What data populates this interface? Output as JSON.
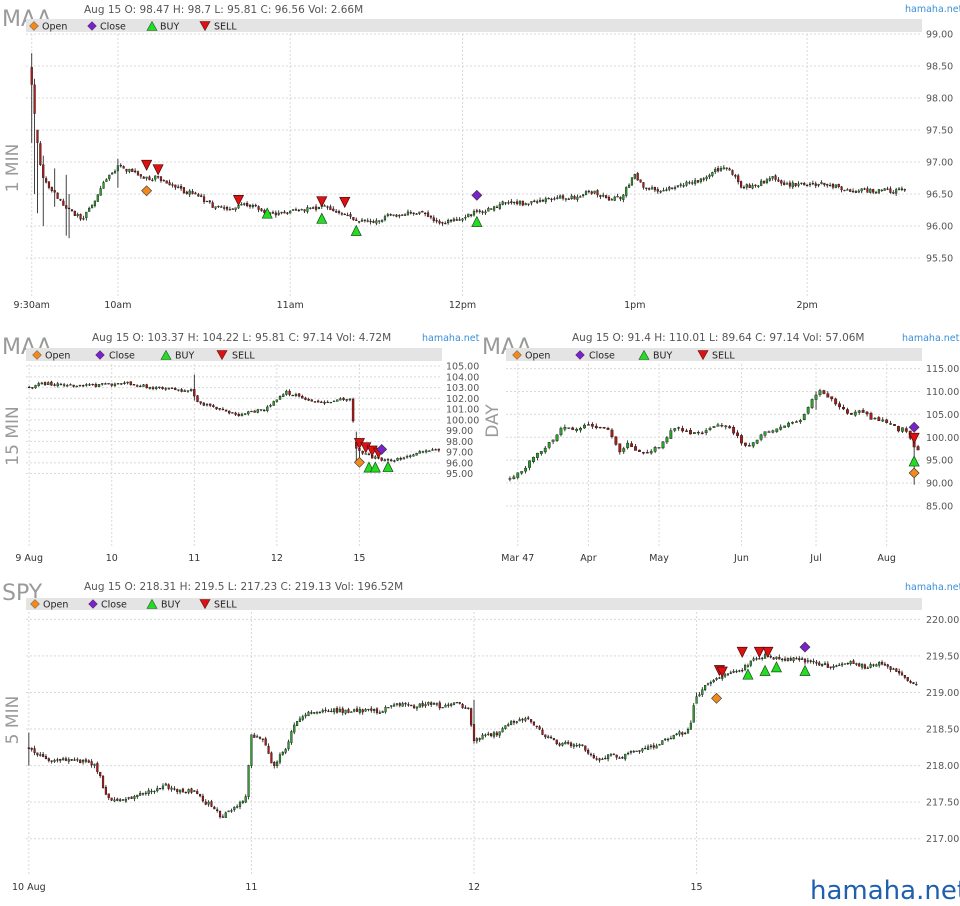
{
  "brand_small": "hamaha.net",
  "watermark": "hamaha.net",
  "legend": {
    "open": "Open",
    "close": "Close",
    "buy": "BUY",
    "sell": "SELL"
  },
  "colors": {
    "up": "#2ca02c",
    "down": "#b01818",
    "open_marker": "#f08a1e",
    "close_marker": "#7a22c8",
    "buy": "#22dd22",
    "sell": "#dd1111"
  },
  "chart_data": [
    {
      "id": "maa_1min",
      "type": "candlestick",
      "symbol": "MAA",
      "timeframe": "1 MIN",
      "info": "Aug 15 O: 98.47 H: 98.7 L: 95.81 C: 96.56   Vol: 2.66M",
      "ylim": [
        95.0,
        99.0
      ],
      "yticks": [
        "99.00",
        "98.50",
        "98.00",
        "97.50",
        "97.00",
        "96.50",
        "96.00",
        "95.50"
      ],
      "xticks": [
        {
          "label": "9:30am",
          "x": 0
        },
        {
          "label": "10am",
          "x": 30
        },
        {
          "label": "11am",
          "x": 90
        },
        {
          "label": "12pm",
          "x": 150
        },
        {
          "label": "1pm",
          "x": 210
        },
        {
          "label": "2pm",
          "x": 270
        }
      ],
      "xlim": [
        -2,
        310
      ],
      "n": 305,
      "path": [
        [
          0,
          98.47
        ],
        [
          2,
          97.5
        ],
        [
          4,
          96.8
        ],
        [
          7,
          96.6
        ],
        [
          12,
          96.3
        ],
        [
          18,
          96.1
        ],
        [
          22,
          96.35
        ],
        [
          26,
          96.7
        ],
        [
          31,
          96.95
        ],
        [
          35,
          96.85
        ],
        [
          40,
          96.75
        ],
        [
          45,
          96.75
        ],
        [
          50,
          96.6
        ],
        [
          57,
          96.5
        ],
        [
          64,
          96.3
        ],
        [
          70,
          96.25
        ],
        [
          76,
          96.35
        ],
        [
          82,
          96.2
        ],
        [
          88,
          96.2
        ],
        [
          95,
          96.25
        ],
        [
          102,
          96.3
        ],
        [
          108,
          96.2
        ],
        [
          114,
          96.1
        ],
        [
          119,
          96.05
        ],
        [
          124,
          96.15
        ],
        [
          130,
          96.2
        ],
        [
          136,
          96.2
        ],
        [
          142,
          96.05
        ],
        [
          148,
          96.1
        ],
        [
          154,
          96.2
        ],
        [
          160,
          96.25
        ],
        [
          166,
          96.4
        ],
        [
          172,
          96.35
        ],
        [
          178,
          96.4
        ],
        [
          184,
          96.45
        ],
        [
          190,
          96.45
        ],
        [
          196,
          96.55
        ],
        [
          201,
          96.4
        ],
        [
          206,
          96.45
        ],
        [
          210,
          96.8
        ],
        [
          214,
          96.6
        ],
        [
          220,
          96.55
        ],
        [
          226,
          96.65
        ],
        [
          232,
          96.7
        ],
        [
          238,
          96.85
        ],
        [
          243,
          96.9
        ],
        [
          248,
          96.6
        ],
        [
          253,
          96.65
        ],
        [
          258,
          96.75
        ],
        [
          264,
          96.65
        ],
        [
          270,
          96.65
        ],
        [
          276,
          96.65
        ],
        [
          282,
          96.6
        ],
        [
          286,
          96.55
        ],
        [
          292,
          96.55
        ],
        [
          298,
          96.55
        ],
        [
          304,
          96.56
        ]
      ],
      "spikes": [
        [
          0,
          98.7,
          97.3
        ],
        [
          1,
          98.3,
          96.5
        ],
        [
          2,
          97.5,
          96.2
        ],
        [
          4,
          97.1,
          96.0
        ],
        [
          8,
          96.9,
          96.3
        ],
        [
          12,
          96.8,
          95.85
        ],
        [
          13,
          96.5,
          95.81
        ],
        [
          30,
          97.05,
          96.6
        ]
      ],
      "markers": [
        {
          "kind": "sell",
          "x": 40,
          "y": 96.95
        },
        {
          "kind": "sell",
          "x": 44,
          "y": 96.88
        },
        {
          "kind": "open",
          "x": 40,
          "y": 96.55
        },
        {
          "kind": "sell",
          "x": 72,
          "y": 96.4
        },
        {
          "kind": "buy",
          "x": 82,
          "y": 96.2
        },
        {
          "kind": "sell",
          "x": 101,
          "y": 96.38
        },
        {
          "kind": "buy",
          "x": 101,
          "y": 96.12
        },
        {
          "kind": "sell",
          "x": 109,
          "y": 96.37
        },
        {
          "kind": "buy",
          "x": 113,
          "y": 95.93
        },
        {
          "kind": "close",
          "x": 155,
          "y": 96.48
        },
        {
          "kind": "buy",
          "x": 155,
          "y": 96.07
        }
      ]
    },
    {
      "id": "maa_15min",
      "type": "candlestick",
      "symbol": "MAA",
      "timeframe": "15 MIN",
      "info": "Aug 15 O: 103.37 H: 104.22 L: 95.81 C: 97.14   Vol: 4.72M",
      "ylim": [
        89.0,
        105.2
      ],
      "yticks": [
        "105.00",
        "104.00",
        "103.00",
        "102.00",
        "101.00",
        "100.00",
        "99.00",
        "98.00",
        "97.00",
        "96.00",
        "95.00"
      ],
      "xticks": [
        {
          "label": "9 Aug",
          "x": 0
        },
        {
          "label": "10",
          "x": 26
        },
        {
          "label": "11",
          "x": 52
        },
        {
          "label": "12",
          "x": 78
        },
        {
          "label": "15",
          "x": 104
        }
      ],
      "xlim": [
        -1,
        130
      ],
      "n": 130,
      "gap_after": 102,
      "path": [
        [
          0,
          103.0
        ],
        [
          5,
          103.4
        ],
        [
          10,
          103.3
        ],
        [
          15,
          103.15
        ],
        [
          20,
          103.2
        ],
        [
          26,
          103.3
        ],
        [
          30,
          103.5
        ],
        [
          35,
          103.2
        ],
        [
          40,
          103.0
        ],
        [
          45,
          102.9
        ],
        [
          51,
          102.6
        ],
        [
          52,
          102.9
        ],
        [
          53,
          101.6
        ],
        [
          58,
          101.2
        ],
        [
          63,
          100.8
        ],
        [
          66,
          100.5
        ],
        [
          70,
          100.65
        ],
        [
          75,
          101.0
        ],
        [
          78,
          101.7
        ],
        [
          81,
          102.6
        ],
        [
          85,
          102.3
        ],
        [
          88,
          101.8
        ],
        [
          94,
          101.6
        ],
        [
          100,
          102.0
        ],
        [
          102,
          102.1
        ],
        [
          103,
          97.6
        ],
        [
          106,
          96.9
        ],
        [
          109,
          96.5
        ],
        [
          112,
          96.2
        ],
        [
          116,
          96.3
        ],
        [
          119,
          96.6
        ],
        [
          122,
          96.8
        ],
        [
          126,
          97.2
        ],
        [
          129,
          97.14
        ]
      ],
      "spikes": [
        [
          52,
          104.22,
          101.8
        ],
        [
          103,
          98.9,
          96.0
        ],
        [
          104,
          98.1,
          95.9
        ]
      ],
      "markers": [
        {
          "kind": "sell",
          "x": 104,
          "y": 97.8
        },
        {
          "kind": "sell",
          "x": 106,
          "y": 97.4
        },
        {
          "kind": "sell",
          "x": 108,
          "y": 97.1
        },
        {
          "kind": "sell",
          "x": 110,
          "y": 96.9
        },
        {
          "kind": "open",
          "x": 104,
          "y": 96.05
        },
        {
          "kind": "close",
          "x": 111,
          "y": 97.25
        },
        {
          "kind": "buy",
          "x": 107,
          "y": 95.6
        },
        {
          "kind": "buy",
          "x": 109,
          "y": 95.6
        },
        {
          "kind": "buy",
          "x": 113,
          "y": 95.65
        }
      ]
    },
    {
      "id": "maa_day",
      "type": "candlestick",
      "symbol": "MAA",
      "timeframe": "DAY",
      "info": "Aug 15 O: 91.4 H: 110.01 L: 89.64 C: 97.14   Vol: 57.06M",
      "ylim": [
        78.0,
        116.0
      ],
      "yticks": [
        "115.00",
        "110.00",
        "105.00",
        "100.00",
        "95.00",
        "90.00",
        "85.00"
      ],
      "xticks": [
        {
          "label": "Mar 47",
          "x": 2
        },
        {
          "label": "Apr",
          "x": 20
        },
        {
          "label": "May",
          "x": 38
        },
        {
          "label": "Jun",
          "x": 59
        },
        {
          "label": "Jul",
          "x": 78
        },
        {
          "label": "Aug",
          "x": 96
        }
      ],
      "xlim": [
        -1,
        105
      ],
      "n": 105,
      "path": [
        [
          0,
          91.0
        ],
        [
          3,
          92.0
        ],
        [
          6,
          95.0
        ],
        [
          9,
          97.5
        ],
        [
          12,
          100.0
        ],
        [
          14,
          102.0
        ],
        [
          17,
          101.5
        ],
        [
          20,
          102.5
        ],
        [
          23,
          102.5
        ],
        [
          26,
          101.0
        ],
        [
          28,
          97.0
        ],
        [
          31,
          98.5
        ],
        [
          34,
          96.5
        ],
        [
          37,
          97.5
        ],
        [
          39,
          98.0
        ],
        [
          42,
          102.0
        ],
        [
          45,
          101.5
        ],
        [
          48,
          100.5
        ],
        [
          51,
          101.5
        ],
        [
          54,
          102.5
        ],
        [
          57,
          102.0
        ],
        [
          60,
          98.0
        ],
        [
          62,
          98.0
        ],
        [
          64,
          100.5
        ],
        [
          67,
          101.5
        ],
        [
          70,
          102.5
        ],
        [
          73,
          103.0
        ],
        [
          75,
          104.0
        ],
        [
          77,
          108.0
        ],
        [
          79,
          110.0
        ],
        [
          82,
          108.5
        ],
        [
          85,
          106.0
        ],
        [
          88,
          105.0
        ],
        [
          90,
          106.0
        ],
        [
          92,
          104.5
        ],
        [
          94,
          103.5
        ],
        [
          96,
          104.0
        ],
        [
          98,
          102.5
        ],
        [
          100,
          101.5
        ],
        [
          101,
          102.5
        ],
        [
          103,
          99.0
        ],
        [
          104,
          97.14
        ]
      ],
      "spikes": [
        [
          78,
          110.01,
          106.0
        ],
        [
          103,
          101.0,
          89.64
        ]
      ],
      "markers": [
        {
          "kind": "close",
          "x": 103,
          "y": 102.2
        },
        {
          "kind": "sell",
          "x": 103,
          "y": 99.8
        },
        {
          "kind": "buy",
          "x": 103,
          "y": 94.8
        },
        {
          "kind": "open",
          "x": 103,
          "y": 92.2
        }
      ]
    },
    {
      "id": "spy_5min",
      "type": "candlestick",
      "symbol": "SPY",
      "timeframe": "5 MIN",
      "info": "Aug 15 O: 218.31 H: 219.5 L: 217.23 C: 219.13   Vol: 196.52M",
      "ylim": [
        216.6,
        220.1
      ],
      "yticks": [
        "220.00",
        "219.50",
        "219.00",
        "218.50",
        "218.00",
        "217.50",
        "217.00"
      ],
      "xticks": [
        {
          "label": "10 Aug",
          "x": 0
        },
        {
          "label": "11",
          "x": 78
        },
        {
          "label": "12",
          "x": 156
        },
        {
          "label": "15",
          "x": 234
        }
      ],
      "xlim": [
        -1,
        313
      ],
      "n": 312,
      "path": [
        [
          0,
          218.25
        ],
        [
          4,
          218.15
        ],
        [
          8,
          218.05
        ],
        [
          14,
          218.1
        ],
        [
          20,
          218.05
        ],
        [
          24,
          218.0
        ],
        [
          28,
          217.55
        ],
        [
          33,
          217.5
        ],
        [
          38,
          217.6
        ],
        [
          43,
          217.65
        ],
        [
          48,
          217.75
        ],
        [
          52,
          217.65
        ],
        [
          58,
          217.65
        ],
        [
          62,
          217.5
        ],
        [
          65,
          217.45
        ],
        [
          68,
          217.3
        ],
        [
          72,
          217.4
        ],
        [
          75,
          217.5
        ],
        [
          77,
          217.6
        ],
        [
          78,
          218.4
        ],
        [
          82,
          218.4
        ],
        [
          86,
          218.0
        ],
        [
          90,
          218.2
        ],
        [
          94,
          218.6
        ],
        [
          100,
          218.75
        ],
        [
          106,
          218.75
        ],
        [
          112,
          218.75
        ],
        [
          118,
          218.75
        ],
        [
          124,
          218.75
        ],
        [
          130,
          218.85
        ],
        [
          136,
          218.8
        ],
        [
          140,
          218.85
        ],
        [
          146,
          218.8
        ],
        [
          150,
          218.85
        ],
        [
          155,
          218.75
        ],
        [
          156,
          218.35
        ],
        [
          160,
          218.4
        ],
        [
          165,
          218.45
        ],
        [
          170,
          218.6
        ],
        [
          176,
          218.65
        ],
        [
          180,
          218.45
        ],
        [
          186,
          218.3
        ],
        [
          190,
          218.3
        ],
        [
          195,
          218.25
        ],
        [
          200,
          218.05
        ],
        [
          204,
          218.15
        ],
        [
          208,
          218.1
        ],
        [
          213,
          218.2
        ],
        [
          218,
          218.25
        ],
        [
          224,
          218.35
        ],
        [
          232,
          218.5
        ],
        [
          234,
          218.9
        ],
        [
          238,
          219.1
        ],
        [
          242,
          219.2
        ],
        [
          246,
          219.25
        ],
        [
          250,
          219.3
        ],
        [
          254,
          219.45
        ],
        [
          258,
          219.5
        ],
        [
          264,
          219.45
        ],
        [
          270,
          219.45
        ],
        [
          276,
          219.4
        ],
        [
          282,
          219.35
        ],
        [
          288,
          219.4
        ],
        [
          294,
          219.35
        ],
        [
          300,
          219.4
        ],
        [
          305,
          219.25
        ],
        [
          311,
          219.13
        ]
      ],
      "spikes": [
        [
          0,
          218.45,
          218.0
        ],
        [
          156,
          218.9,
          218.3
        ],
        [
          234,
          219.0,
          218.85
        ]
      ],
      "markers": [
        {
          "kind": "sell",
          "x": 242,
          "y": 219.3
        },
        {
          "kind": "sell",
          "x": 243,
          "y": 219.28
        },
        {
          "kind": "open",
          "x": 241,
          "y": 218.92
        },
        {
          "kind": "sell",
          "x": 250,
          "y": 219.55
        },
        {
          "kind": "sell",
          "x": 256,
          "y": 219.55
        },
        {
          "kind": "sell",
          "x": 259,
          "y": 219.55
        },
        {
          "kind": "buy",
          "x": 252,
          "y": 219.25
        },
        {
          "kind": "buy",
          "x": 258,
          "y": 219.3
        },
        {
          "kind": "buy",
          "x": 262,
          "y": 219.35
        },
        {
          "kind": "close",
          "x": 272,
          "y": 219.62
        },
        {
          "kind": "buy",
          "x": 272,
          "y": 219.3
        }
      ]
    }
  ]
}
